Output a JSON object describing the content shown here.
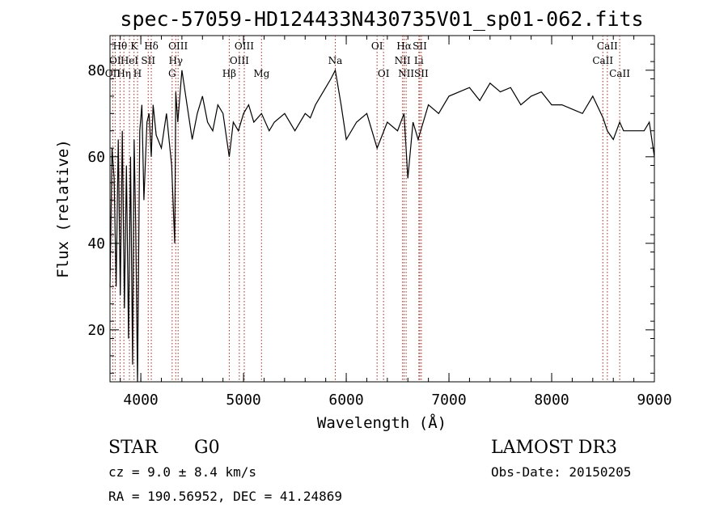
{
  "chart_data": {
    "type": "line",
    "title": "spec-57059-HD124433N430735V01_sp01-062.fits",
    "xlabel": "Wavelength (Å)",
    "ylabel": "Flux (relative)",
    "xlim": [
      3700,
      9000
    ],
    "ylim": [
      8,
      88
    ],
    "xticks": [
      4000,
      5000,
      6000,
      7000,
      8000,
      9000
    ],
    "yticks": [
      20,
      40,
      60,
      80
    ],
    "grid": false,
    "line_color": "#000000",
    "marker_color": "#a0281e",
    "series": [
      {
        "x": [
          3700,
          3720,
          3740,
          3760,
          3780,
          3800,
          3820,
          3840,
          3860,
          3880,
          3900,
          3920,
          3935,
          3950,
          3968,
          3990,
          4010,
          4030,
          4060,
          4080,
          4102,
          4120,
          4150,
          4200,
          4250,
          4300,
          4330,
          4340,
          4360,
          4400,
          4450,
          4500,
          4550,
          4600,
          4650,
          4700,
          4750,
          4800,
          4861,
          4900,
          4950,
          5000,
          5050,
          5100,
          5175,
          5250,
          5300,
          5400,
          5500,
          5600,
          5650,
          5700,
          5750,
          5800,
          5850,
          5893,
          5950,
          6000,
          6100,
          6200,
          6300,
          6400,
          6500,
          6563,
          6600,
          6650,
          6700,
          6800,
          6900,
          7000,
          7100,
          7200,
          7300,
          7400,
          7500,
          7600,
          7700,
          7800,
          7900,
          8000,
          8100,
          8200,
          8300,
          8400,
          8500,
          8542,
          8600,
          8662,
          8700,
          8800,
          8900,
          8950,
          9000
        ],
        "y": [
          30,
          62,
          55,
          30,
          64,
          28,
          66,
          25,
          58,
          18,
          60,
          12,
          64,
          45,
          8,
          66,
          72,
          50,
          68,
          70,
          60,
          72,
          65,
          62,
          70,
          58,
          40,
          75,
          68,
          80,
          72,
          64,
          70,
          74,
          68,
          66,
          72,
          70,
          60,
          68,
          66,
          70,
          72,
          68,
          70,
          66,
          68,
          70,
          66,
          70,
          69,
          72,
          74,
          76,
          78,
          80,
          72,
          64,
          68,
          70,
          62,
          68,
          66,
          70,
          55,
          68,
          64,
          72,
          70,
          74,
          75,
          76,
          73,
          77,
          75,
          76,
          72,
          74,
          75,
          72,
          72,
          71,
          70,
          74,
          69,
          66,
          64,
          68,
          66,
          66,
          66,
          68,
          60
        ]
      }
    ],
    "line_markers": [
      {
        "x": 3727,
        "label": "OII",
        "row": 2
      },
      {
        "x": 3750,
        "label": "OI",
        "row": 1
      },
      {
        "x": 3798,
        "label": "Hθ",
        "row": 0
      },
      {
        "x": 3835,
        "label": "Hη",
        "row": 2
      },
      {
        "x": 3889,
        "label": "HeI",
        "row": 1
      },
      {
        "x": 3934,
        "label": "K",
        "row": 0
      },
      {
        "x": 3968,
        "label": "H",
        "row": 2
      },
      {
        "x": 4072,
        "label": "SII",
        "row": 1
      },
      {
        "x": 4102,
        "label": "Hδ",
        "row": 0
      },
      {
        "x": 4305,
        "label": "G",
        "row": 2
      },
      {
        "x": 4340,
        "label": "Hγ",
        "row": 1
      },
      {
        "x": 4363,
        "label": "OIII",
        "row": 0
      },
      {
        "x": 4861,
        "label": "Hβ",
        "row": 2
      },
      {
        "x": 4959,
        "label": "OIII",
        "row": 1
      },
      {
        "x": 5007,
        "label": "OIII",
        "row": 0
      },
      {
        "x": 5175,
        "label": "Mg",
        "row": 2
      },
      {
        "x": 5893,
        "label": "Na",
        "row": 1
      },
      {
        "x": 6300,
        "label": "OI",
        "row": 0
      },
      {
        "x": 6363,
        "label": "OI",
        "row": 2
      },
      {
        "x": 6548,
        "label": "NII",
        "row": 1
      },
      {
        "x": 6563,
        "label": "Hα",
        "row": 0
      },
      {
        "x": 6583,
        "label": "NII",
        "row": 2
      },
      {
        "x": 6707,
        "label": "Li",
        "row": 1
      },
      {
        "x": 6716,
        "label": "SII",
        "row": 0
      },
      {
        "x": 6731,
        "label": "SII",
        "row": 2
      },
      {
        "x": 8498,
        "label": "CaII",
        "row": 1
      },
      {
        "x": 8542,
        "label": "CaII",
        "row": 0
      },
      {
        "x": 8662,
        "label": "CaII",
        "row": 2
      }
    ]
  },
  "info": {
    "object_class": "STAR",
    "subclass": "G0",
    "survey": "LAMOST DR3",
    "redshift": "cz =  9.0 ± 8.4 km/s",
    "obs_date": "Obs-Date: 20150205",
    "coords": "RA = 190.56952, DEC =  41.24869"
  }
}
